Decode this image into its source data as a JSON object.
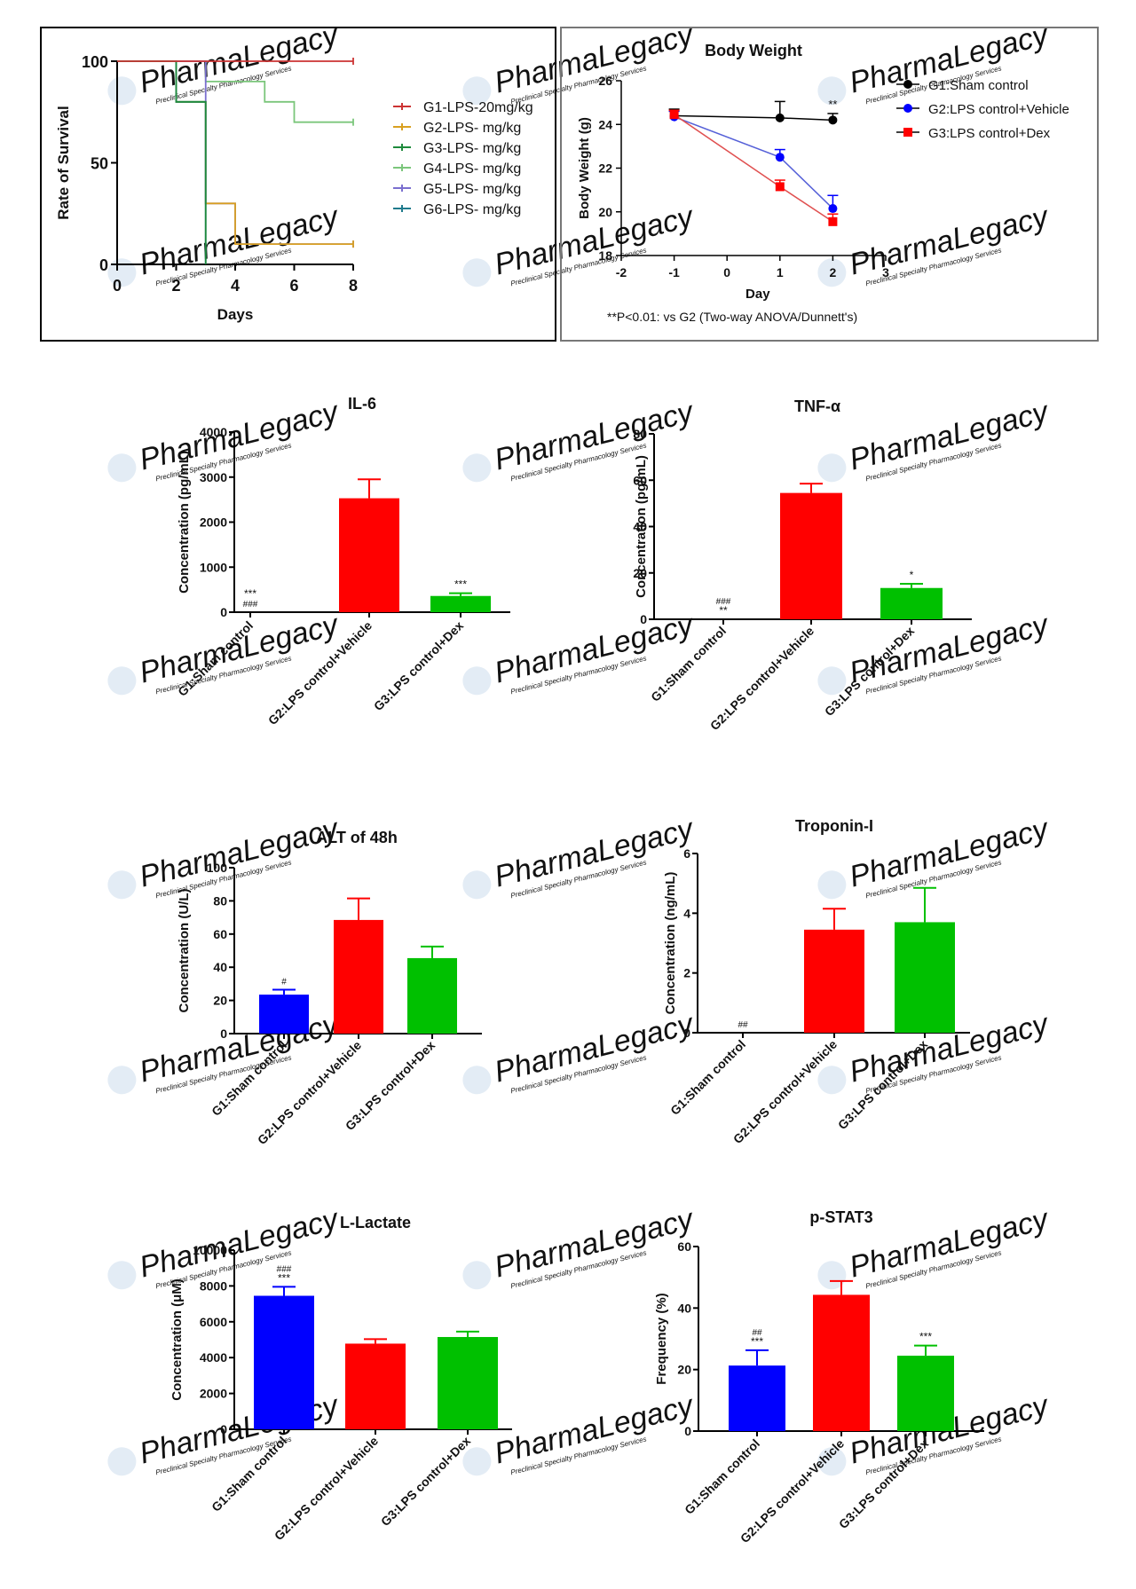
{
  "colors": {
    "red": "#ff0000",
    "green": "#00c000",
    "blue": "#0000ff",
    "axis": "#000000",
    "survival": [
      "#cc3333",
      "#d9a020",
      "#1e8a3c",
      "#7bc67b",
      "#7b6fcf",
      "#1f7a8c"
    ]
  },
  "watermark": {
    "text": "PharmaLegacy",
    "subtext": "Preclinical Specialty Pharmacology Services"
  },
  "chart_data": [
    {
      "id": "survival",
      "type": "line",
      "step": true,
      "title": "",
      "xlabel": "Days",
      "ylabel": "Rate of Survival",
      "xlim": [
        0,
        8
      ],
      "ylim": [
        0,
        100
      ],
      "xticks": [
        "0",
        "2",
        "4",
        "6",
        "8"
      ],
      "yticks": [
        "0",
        "50",
        "100"
      ],
      "series": [
        {
          "name": "G1-LPS-20mg/kg",
          "points": [
            [
              0,
              100
            ],
            [
              8,
              100
            ]
          ]
        },
        {
          "name": "G2-LPS-   mg/kg",
          "points": [
            [
              0,
              100
            ],
            [
              2,
              100
            ],
            [
              2,
              80
            ],
            [
              3,
              80
            ],
            [
              3,
              30
            ],
            [
              4,
              30
            ],
            [
              4,
              10
            ],
            [
              8,
              10
            ]
          ]
        },
        {
          "name": "G3-LPS-   mg/kg",
          "points": [
            [
              0,
              100
            ],
            [
              2,
              100
            ],
            [
              2,
              80
            ],
            [
              3,
              80
            ],
            [
              3,
              0
            ]
          ]
        },
        {
          "name": "G4-LPS-   mg/kg",
          "points": [
            [
              0,
              100
            ],
            [
              3,
              100
            ],
            [
              3,
              90
            ],
            [
              5,
              90
            ],
            [
              5,
              80
            ],
            [
              6,
              80
            ],
            [
              6,
              70
            ],
            [
              8,
              70
            ]
          ]
        },
        {
          "name": "G5-LPS-   mg/kg",
          "points": [
            [
              0,
              100
            ],
            [
              3,
              100
            ],
            [
              3,
              30
            ],
            [
              4,
              30
            ],
            [
              4,
              10
            ],
            [
              8,
              10
            ]
          ]
        },
        {
          "name": "G6-LPS-   mg/kg",
          "points": [
            [
              0,
              100
            ],
            [
              2,
              100
            ],
            [
              2,
              80
            ],
            [
              3,
              80
            ],
            [
              3,
              0
            ]
          ]
        }
      ]
    },
    {
      "id": "bodyweight",
      "type": "line",
      "title": "Body Weight",
      "xlabel": "Day",
      "ylabel": "Body Weight (g)",
      "xlim": [
        -2,
        3
      ],
      "ylim": [
        18,
        26
      ],
      "xticks": [
        "-2",
        "-1",
        "0",
        "1",
        "2",
        "3"
      ],
      "yticks": [
        "18",
        "20",
        "22",
        "24",
        "26"
      ],
      "footnote": "**P<0.01: vs G2 (Two-way ANOVA/Dunnett's)",
      "series": [
        {
          "name": "G1:Sham control",
          "marker": "circle",
          "x": [
            -1,
            1,
            2
          ],
          "y": [
            24.4,
            24.3,
            24.2
          ],
          "err": [
            0.3,
            0.75,
            0.3
          ]
        },
        {
          "name": "G2:LPS control+Vehicle",
          "marker": "circle",
          "x": [
            -1,
            1,
            2
          ],
          "y": [
            24.35,
            22.5,
            20.15
          ],
          "err": [
            0.25,
            0.35,
            0.6
          ]
        },
        {
          "name": "G3:LPS control+Dex",
          "marker": "square",
          "x": [
            -1,
            1,
            2
          ],
          "y": [
            24.45,
            21.15,
            19.55
          ],
          "err": [
            0.2,
            0.3,
            0.35
          ]
        }
      ],
      "annotations": [
        {
          "x": 2,
          "y": 24.9,
          "text": "**"
        }
      ]
    },
    {
      "id": "il6",
      "type": "bar",
      "title": "IL-6",
      "ylabel": "Concentration (pg/mL)",
      "ylim": [
        0,
        4000
      ],
      "yticks": [
        "0",
        "1000",
        "2000",
        "3000",
        "4000"
      ],
      "categories": [
        "G1:Sham control",
        "G2:LPS control+Vehicle",
        "G3:LPS control+Dex"
      ],
      "values": [
        0,
        2530,
        360
      ],
      "errors": [
        0,
        420,
        60
      ],
      "marks": [
        [
          "***",
          "###"
        ],
        [],
        [
          "***"
        ]
      ]
    },
    {
      "id": "tnf",
      "type": "bar",
      "title": "TNF-α",
      "ylabel": "Concentration (pg/mL)",
      "ylim": [
        0,
        80
      ],
      "yticks": [
        "0",
        "20",
        "40",
        "60",
        "80"
      ],
      "categories": [
        "G1:Sham control",
        "G2:LPS control+Vehicle",
        "G3:LPS control+Dex"
      ],
      "values": [
        0,
        54.5,
        13.5
      ],
      "errors": [
        0,
        4,
        1.8
      ],
      "marks": [
        [
          "###",
          "**"
        ],
        [],
        [
          "*"
        ]
      ]
    },
    {
      "id": "alt",
      "type": "bar",
      "title": "ALT of 48h",
      "ylabel": "Concentration (U/L)",
      "ylim": [
        0,
        100
      ],
      "yticks": [
        "0",
        "20",
        "40",
        "60",
        "80",
        "100"
      ],
      "categories": [
        "G1:Sham control",
        "G2:LPS control+Vehicle",
        "G3:LPS control+Dex"
      ],
      "values": [
        23.5,
        68.5,
        45.5
      ],
      "errors": [
        3,
        13,
        7
      ],
      "marks": [
        [
          "#"
        ],
        [],
        []
      ]
    },
    {
      "id": "troponin",
      "type": "bar",
      "title": "Troponin-I",
      "ylabel": "Concentration (ng/mL)",
      "ylim": [
        0,
        6
      ],
      "yticks": [
        "0",
        "2",
        "4",
        "6"
      ],
      "categories": [
        "G1:Sham control",
        "G2:LPS control+Vehicle",
        "G3:LPS control+Dex"
      ],
      "values": [
        0,
        3.45,
        3.7
      ],
      "errors": [
        0,
        0.7,
        1.15
      ],
      "marks": [
        [
          "##"
        ],
        [],
        []
      ]
    },
    {
      "id": "lactate",
      "type": "bar",
      "title": "L-Lactate",
      "ylabel": "Concentration (μM)",
      "ylim": [
        0,
        10000
      ],
      "yticks": [
        "0",
        "2000",
        "4000",
        "6000",
        "8000",
        "10000"
      ],
      "categories": [
        "G1:Sham control",
        "G2:LPS control+Vehicle",
        "G3:LPS control+Dex"
      ],
      "values": [
        7450,
        4780,
        5150
      ],
      "errors": [
        500,
        250,
        300
      ],
      "marks": [
        [
          "###",
          "***"
        ],
        [],
        []
      ]
    },
    {
      "id": "pstat3",
      "type": "bar",
      "title": "p-STAT3",
      "ylabel": "Frequency (%)",
      "ylim": [
        0,
        60
      ],
      "yticks": [
        "0",
        "20",
        "40",
        "60"
      ],
      "categories": [
        "G1:Sham control",
        "G2:LPS control+Vehicle",
        "G3:LPS control+Dex"
      ],
      "values": [
        21.3,
        44.3,
        24.5
      ],
      "errors": [
        5,
        4.5,
        3.3
      ],
      "marks": [
        [
          "##",
          "***"
        ],
        [],
        [
          "***"
        ]
      ]
    }
  ]
}
